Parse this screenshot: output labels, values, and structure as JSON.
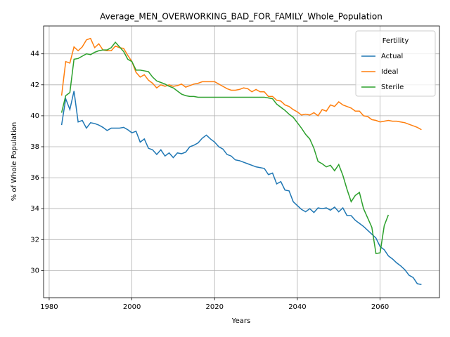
{
  "chart_data": {
    "type": "line",
    "title": "Average_MEN_OVERWORKING_BAD_FOR_FAMILY_Whole_Population",
    "xlabel": "Years",
    "ylabel": "% of Whole Population",
    "x": [
      1983,
      1984,
      1985,
      1986,
      1987,
      1988,
      1989,
      1990,
      1991,
      1992,
      1993,
      1994,
      1995,
      1996,
      1997,
      1998,
      1999,
      2000,
      2001,
      2002,
      2003,
      2004,
      2005,
      2006,
      2007,
      2008,
      2009,
      2010,
      2011,
      2012,
      2013,
      2014,
      2015,
      2016,
      2017,
      2018,
      2019,
      2020,
      2021,
      2022,
      2023,
      2024,
      2025,
      2026,
      2027,
      2028,
      2029,
      2030,
      2031,
      2032,
      2033,
      2034,
      2035,
      2036,
      2037,
      2038,
      2039,
      2040,
      2041,
      2042,
      2043,
      2044,
      2045,
      2046,
      2047,
      2048,
      2049,
      2050,
      2051,
      2052,
      2053,
      2054,
      2055,
      2056,
      2057,
      2058,
      2059,
      2060,
      2061,
      2062,
      2063,
      2064,
      2065,
      2066,
      2067,
      2068,
      2069,
      2070
    ],
    "series": [
      {
        "name": "Actual",
        "color": "#1f77b4",
        "values": [
          39.4,
          41.1,
          40.4,
          41.6,
          39.6,
          39.7,
          39.2,
          39.55,
          39.5,
          39.4,
          39.25,
          39.05,
          39.2,
          39.2,
          39.2,
          39.25,
          39.1,
          38.9,
          39.0,
          38.3,
          38.5,
          37.9,
          37.8,
          37.5,
          37.8,
          37.4,
          37.6,
          37.3,
          37.6,
          37.55,
          37.65,
          38.0,
          38.1,
          38.25,
          38.55,
          38.75,
          38.5,
          38.3,
          38.0,
          37.85,
          37.5,
          37.4,
          37.15,
          37.1,
          37.0,
          36.9,
          36.8,
          36.7,
          36.65,
          36.6,
          36.2,
          36.3,
          35.6,
          35.75,
          35.2,
          35.15,
          34.45,
          34.2,
          33.95,
          33.8,
          34.0,
          33.75,
          34.05,
          34.0,
          34.05,
          33.9,
          34.1,
          33.8,
          34.05,
          33.55,
          33.55,
          33.25,
          33.05,
          32.85,
          32.6,
          32.35,
          32.1,
          31.55,
          31.35,
          30.95,
          30.75,
          30.5,
          30.3,
          30.05,
          29.7,
          29.55,
          29.15,
          29.1
        ]
      },
      {
        "name": "Ideal",
        "color": "#ff7f0e",
        "values": [
          41.3,
          43.5,
          43.4,
          44.45,
          44.2,
          44.45,
          44.9,
          45.0,
          44.4,
          44.65,
          44.25,
          44.2,
          44.2,
          44.5,
          44.4,
          44.35,
          43.9,
          43.5,
          42.8,
          42.5,
          42.65,
          42.3,
          42.1,
          41.8,
          42.0,
          41.9,
          42.0,
          41.9,
          41.95,
          42.05,
          41.85,
          41.95,
          42.05,
          42.1,
          42.2,
          42.2,
          42.2,
          42.2,
          42.05,
          41.9,
          41.75,
          41.65,
          41.65,
          41.7,
          41.8,
          41.75,
          41.55,
          41.7,
          41.55,
          41.55,
          41.25,
          41.25,
          41.0,
          40.95,
          40.7,
          40.6,
          40.4,
          40.25,
          40.05,
          40.1,
          40.05,
          40.2,
          40.0,
          40.4,
          40.3,
          40.7,
          40.6,
          40.9,
          40.7,
          40.6,
          40.5,
          40.3,
          40.3,
          40.0,
          39.95,
          39.75,
          39.7,
          39.6,
          39.65,
          39.7,
          39.65,
          39.65,
          39.6,
          39.55,
          39.45,
          39.35,
          39.25,
          39.1
        ]
      },
      {
        "name": "Sterile",
        "color": "#2ca02c",
        "values": [
          40.2,
          41.3,
          41.5,
          43.65,
          43.7,
          43.85,
          44.0,
          43.95,
          44.1,
          44.2,
          44.25,
          44.25,
          44.4,
          44.75,
          44.45,
          44.15,
          43.65,
          43.5,
          42.95,
          42.95,
          42.9,
          42.85,
          42.5,
          42.25,
          42.15,
          42.05,
          41.9,
          41.8,
          41.6,
          41.4,
          41.3,
          41.25,
          41.25,
          41.2,
          41.2,
          41.2,
          41.2,
          41.2,
          41.2,
          41.2,
          41.2,
          41.2,
          41.2,
          41.2,
          41.2,
          41.2,
          41.2,
          41.2,
          41.2,
          41.2,
          41.15,
          41.1,
          40.75,
          40.55,
          40.35,
          40.1,
          39.9,
          39.55,
          39.2,
          38.8,
          38.5,
          37.9,
          37.05,
          36.9,
          36.7,
          36.8,
          36.45,
          36.85,
          36.15,
          35.25,
          34.45,
          34.85,
          35.05,
          34.0,
          33.4,
          32.8,
          31.1,
          31.15,
          32.9,
          33.6,
          null,
          null,
          null,
          null,
          null,
          null,
          null,
          null
        ]
      }
    ],
    "xlim": [
      1978.65,
      2074.35
    ],
    "xticks": [
      1980,
      2000,
      2020,
      2040,
      2060
    ],
    "ylim": [
      28.25,
      45.8
    ],
    "yticks": [
      30,
      32,
      34,
      36,
      38,
      40,
      42,
      44
    ],
    "grid": true,
    "legend_title": "Fertility",
    "legend_loc": "upper right"
  }
}
